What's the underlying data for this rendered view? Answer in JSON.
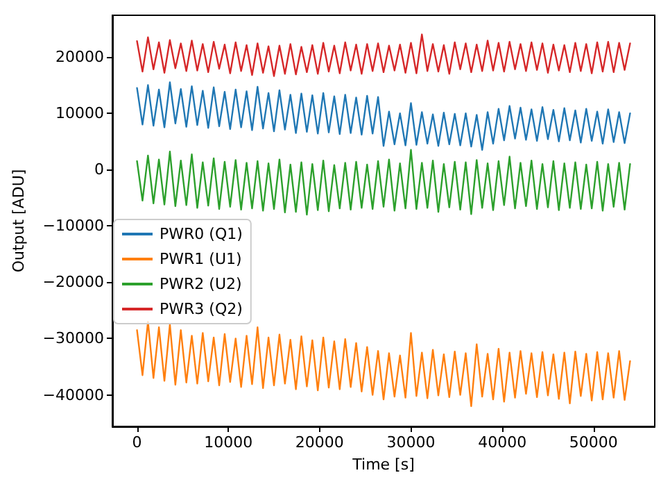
{
  "chart_data": {
    "type": "line",
    "xlabel": "Time [s]",
    "ylabel": "Output [ADU]",
    "x": [
      0,
      600,
      1200,
      1800,
      2400,
      3000,
      3600,
      4200,
      4800,
      5400,
      6000,
      6600,
      7200,
      7800,
      8400,
      9000,
      9600,
      10200,
      10800,
      11400,
      12000,
      12600,
      13200,
      13800,
      14400,
      15000,
      15600,
      16200,
      16800,
      17400,
      18000,
      18600,
      19200,
      19800,
      20400,
      21000,
      21600,
      22200,
      22800,
      23400,
      24000,
      24600,
      25200,
      25800,
      26400,
      27000,
      27600,
      28200,
      28800,
      29400,
      30000,
      30600,
      31200,
      31800,
      32400,
      33000,
      33600,
      34200,
      34800,
      35400,
      36000,
      36600,
      37200,
      37800,
      38400,
      39000,
      39600,
      40200,
      40800,
      41400,
      42000,
      42600,
      43200,
      43800,
      44400,
      45000,
      45600,
      46200,
      46800,
      47400,
      48000,
      48600,
      49200,
      49800,
      50400,
      51000,
      51600,
      52200,
      52800,
      53400,
      54000
    ],
    "series": [
      {
        "name": "PWR0 (Q1)",
        "color": "#1f77b4",
        "values": [
          14500,
          8000,
          15000,
          7800,
          14200,
          7500,
          15500,
          8200,
          14300,
          7600,
          14800,
          7900,
          14000,
          7400,
          14600,
          7700,
          13800,
          7200,
          14200,
          7500,
          13900,
          7000,
          14700,
          7300,
          13600,
          6800,
          14100,
          7100,
          13300,
          6500,
          13500,
          6700,
          13200,
          6400,
          13600,
          6600,
          13000,
          6300,
          13300,
          6500,
          12800,
          6200,
          13100,
          6400,
          12900,
          4200,
          10300,
          4500,
          10000,
          4300,
          11800,
          4400,
          10200,
          4600,
          9800,
          4200,
          10100,
          4500,
          9900,
          4300,
          10000,
          4100,
          9700,
          3500,
          10200,
          4600,
          10800,
          5200,
          11300,
          5500,
          11000,
          5300,
          10700,
          5100,
          11100,
          5400,
          10600,
          5000,
          10900,
          5200,
          10500,
          4800,
          10800,
          5100,
          10300,
          4600,
          10700,
          4900,
          10200,
          4700,
          10000
        ]
      },
      {
        "name": "PWR1 (U1)",
        "color": "#ff7f0e",
        "values": [
          -28500,
          -36500,
          -27000,
          -37000,
          -28000,
          -37500,
          -27500,
          -38200,
          -28500,
          -37800,
          -29500,
          -38000,
          -29000,
          -37600,
          -29800,
          -38300,
          -29200,
          -37700,
          -30000,
          -38600,
          -29500,
          -38100,
          -28000,
          -38800,
          -29800,
          -38300,
          -29300,
          -38000,
          -30200,
          -39000,
          -29600,
          -38500,
          -30300,
          -39200,
          -29800,
          -38700,
          -30500,
          -39000,
          -30100,
          -38600,
          -30800,
          -39400,
          -31500,
          -40000,
          -32200,
          -40800,
          -32600,
          -40300,
          -33000,
          -40500,
          -29000,
          -40200,
          -32500,
          -40600,
          -32000,
          -40100,
          -32800,
          -40400,
          -32300,
          -40000,
          -32600,
          -42000,
          -31000,
          -40300,
          -32700,
          -40800,
          -31800,
          -41200,
          -32500,
          -40500,
          -32200,
          -39800,
          -32600,
          -40400,
          -32400,
          -40100,
          -32800,
          -40700,
          -32500,
          -41500,
          -32300,
          -40200,
          -32700,
          -41000,
          -32400,
          -40800,
          -32600,
          -40500,
          -32200,
          -40900,
          -34000
        ]
      },
      {
        "name": "PWR2 (U2)",
        "color": "#2ca02c",
        "values": [
          1500,
          -5500,
          2500,
          -6000,
          1800,
          -6200,
          3200,
          -6500,
          1600,
          -6300,
          2700,
          -6800,
          1300,
          -6400,
          2000,
          -7000,
          1400,
          -6600,
          1700,
          -7100,
          1200,
          -6900,
          1500,
          -7300,
          1100,
          -7000,
          1800,
          -7600,
          900,
          -7500,
          1300,
          -8000,
          1000,
          -7200,
          1600,
          -7400,
          800,
          -6900,
          1200,
          -7100,
          1400,
          -6800,
          900,
          -7000,
          1500,
          -6600,
          1800,
          -7300,
          1100,
          -6900,
          3500,
          -7000,
          1200,
          -6800,
          1600,
          -7500,
          1000,
          -6700,
          1400,
          -7100,
          1300,
          -7900,
          1700,
          -6800,
          1100,
          -7200,
          1500,
          -6300,
          2300,
          -6900,
          1200,
          -6500,
          1600,
          -7000,
          1000,
          -6700,
          1500,
          -7200,
          1100,
          -6800,
          1300,
          -7000,
          900,
          -6900,
          1400,
          -7300,
          1000,
          -6600,
          1200,
          -7100,
          1000
        ]
      },
      {
        "name": "PWR3 (Q2)",
        "color": "#d62728",
        "values": [
          22800,
          17400,
          23500,
          17800,
          22600,
          17200,
          23000,
          18000,
          22400,
          17500,
          22900,
          17600,
          22300,
          17300,
          22700,
          17900,
          22200,
          17100,
          22600,
          17500,
          22100,
          16800,
          22400,
          17200,
          21900,
          16600,
          22000,
          17000,
          22300,
          16900,
          21800,
          17300,
          22100,
          17000,
          22500,
          17400,
          22000,
          17100,
          22600,
          17600,
          22200,
          17000,
          22300,
          17500,
          22400,
          17300,
          22000,
          17600,
          22200,
          17200,
          22500,
          17100,
          24000,
          17500,
          22300,
          17400,
          22100,
          17000,
          22600,
          17800,
          22400,
          17300,
          22200,
          17500,
          22900,
          17600,
          22500,
          17400,
          22700,
          17800,
          22300,
          17500,
          22600,
          17700,
          22400,
          17200,
          22200,
          17600,
          22100,
          17300,
          22500,
          17500,
          22300,
          17100,
          22600,
          17400,
          22700,
          17300,
          22500,
          17700,
          22400
        ]
      }
    ],
    "xlim": [
      -2700,
      56700
    ],
    "xticks": [
      0,
      10000,
      20000,
      30000,
      40000,
      50000
    ],
    "ylim": [
      -45600,
      27400
    ],
    "yticks": [
      -40000,
      -30000,
      -20000,
      -10000,
      0,
      10000,
      20000
    ],
    "grid": false,
    "legend": "left",
    "marker": "none",
    "line_style": "solid"
  }
}
